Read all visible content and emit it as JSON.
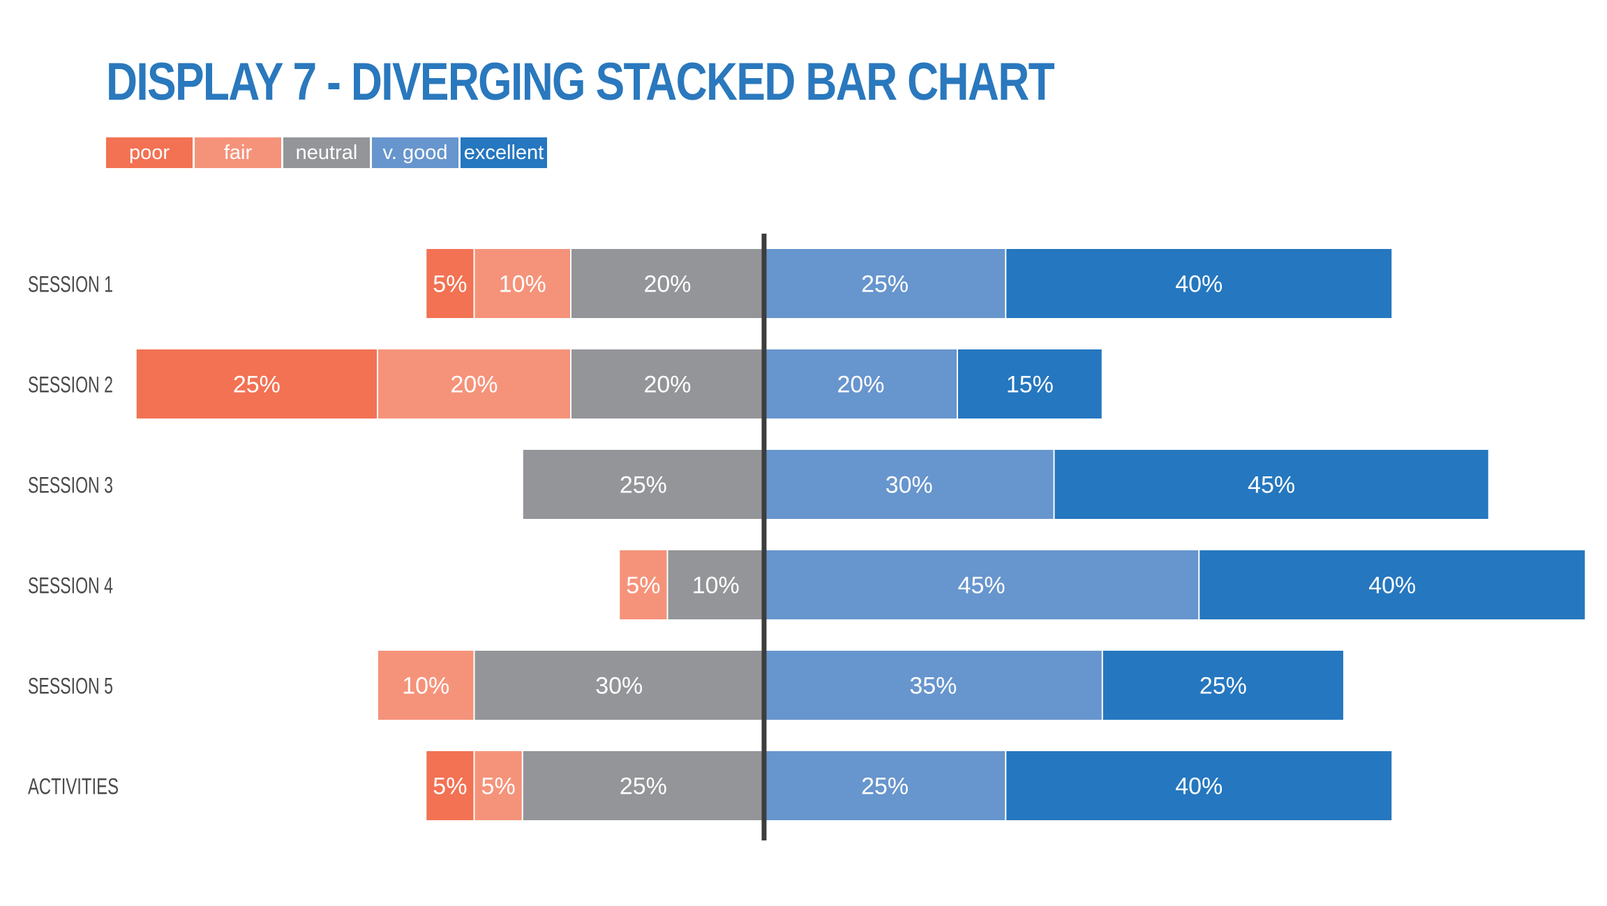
{
  "chart_data": {
    "type": "bar",
    "orientation": "horizontal",
    "stacking": "diverging",
    "title": "DISPLAY 7 - DIVERGING STACKED BAR CHART",
    "xlabel": "",
    "ylabel": "",
    "grid": false,
    "legend_position": "top-left",
    "categories": [
      "SESSION 1",
      "SESSION 2",
      "SESSION 3",
      "SESSION 4",
      "SESSION 5",
      "ACTIVITIES"
    ],
    "series": [
      {
        "name": "poor",
        "color": "#f27253",
        "side": "left",
        "values": [
          5,
          25,
          0,
          0,
          0,
          5
        ],
        "labels": [
          "5%",
          "25%",
          "",
          "",
          "",
          "5%"
        ]
      },
      {
        "name": "fair",
        "color": "#f5937a",
        "side": "left",
        "values": [
          10,
          20,
          0,
          5,
          10,
          5
        ],
        "labels": [
          "10%",
          "20%",
          "",
          "5%",
          "10%",
          "5%"
        ]
      },
      {
        "name": "neutral",
        "color": "#939598",
        "side": "left",
        "values": [
          20,
          20,
          25,
          10,
          30,
          25
        ],
        "labels": [
          "20%",
          "20%",
          "25%",
          "10%",
          "30%",
          "25%"
        ]
      },
      {
        "name": "v. good",
        "color": "#6795cd",
        "side": "right",
        "values": [
          25,
          20,
          30,
          45,
          35,
          25
        ],
        "labels": [
          "25%",
          "20%",
          "30%",
          "45%",
          "35%",
          "25%"
        ]
      },
      {
        "name": "excellent",
        "color": "#2577bf",
        "side": "right",
        "values": [
          40,
          15,
          45,
          40,
          25,
          40
        ],
        "labels": [
          "40%",
          "15%",
          "45%",
          "40%",
          "25%",
          "40%"
        ]
      }
    ],
    "center_line_color": "#3d3d3d"
  }
}
